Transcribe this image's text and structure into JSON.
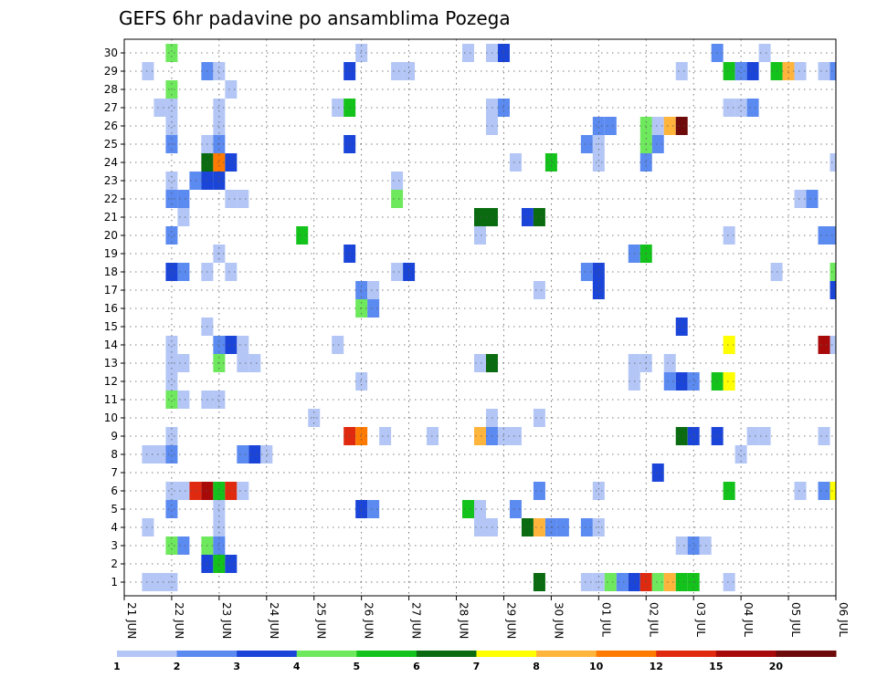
{
  "chart_data": {
    "type": "heatmap",
    "title": "GEFS 6hr padavine po ansamblima Pozega",
    "xlabel": "",
    "ylabel": "",
    "y_range": [
      1,
      30
    ],
    "x_time_range": [
      "2021-06-21 00:00",
      "2021-07-06 00:00"
    ],
    "grid": true,
    "x_tick_labels": [
      "21 JUN",
      "22 JUN",
      "23 JUN",
      "24 JUN",
      "25 JUN",
      "26 JUN",
      "27 JUN",
      "28 JUN",
      "29 JUN",
      "30 JUN",
      "01 JUL",
      "02 JUL",
      "03 JUL",
      "04 JUL",
      "05 JUL",
      "06 JUL"
    ],
    "y_tick_labels": [
      "1",
      "2",
      "3",
      "4",
      "5",
      "6",
      "7",
      "8",
      "9",
      "10",
      "11",
      "12",
      "13",
      "14",
      "15",
      "16",
      "17",
      "18",
      "19",
      "20",
      "21",
      "22",
      "23",
      "24",
      "25",
      "26",
      "27",
      "28",
      "29",
      "30"
    ],
    "colorbar": {
      "placement": "bottom",
      "levels": [
        "1",
        "2",
        "3",
        "4",
        "5",
        "6",
        "7",
        "8",
        "10",
        "12",
        "15",
        "20"
      ],
      "colors": [
        "#b3c6f5",
        "#5b8af0",
        "#1a45d8",
        "#6ee85c",
        "#14c21c",
        "#0a6b10",
        "#ffff00",
        "#ffb43c",
        "#ff7a00",
        "#e02a10",
        "#a80a0a",
        "#6e0a0a"
      ]
    },
    "cells": [
      [
        30,
        "2021-06-22 00:00",
        4.5
      ],
      [
        30,
        "2021-06-26 00:00",
        1.5
      ],
      [
        30,
        "2021-06-28 06:00",
        1.5
      ],
      [
        30,
        "2021-06-28 18:00",
        1.5
      ],
      [
        30,
        "2021-06-29 00:00",
        3.5
      ],
      [
        30,
        "2021-07-03 12:00",
        2.5
      ],
      [
        30,
        "2021-07-04 12:00",
        1.5
      ],
      [
        29,
        "2021-06-21 12:00",
        1.5
      ],
      [
        29,
        "2021-06-22 18:00",
        2.5
      ],
      [
        29,
        "2021-06-23 00:00",
        1.5
      ],
      [
        29,
        "2021-06-25 18:00",
        3.5
      ],
      [
        29,
        "2021-06-26 18:00",
        1.5
      ],
      [
        29,
        "2021-06-27 00:00",
        1.5
      ],
      [
        29,
        "2021-07-02 18:00",
        1.5
      ],
      [
        29,
        "2021-07-03 18:00",
        5.5
      ],
      [
        29,
        "2021-07-04 00:00",
        2.5
      ],
      [
        29,
        "2021-07-04 06:00",
        3.5
      ],
      [
        29,
        "2021-07-04 18:00",
        5.5
      ],
      [
        29,
        "2021-07-05 00:00",
        9
      ],
      [
        29,
        "2021-07-05 06:00",
        1.5
      ],
      [
        29,
        "2021-07-05 18:00",
        1.5
      ],
      [
        29,
        "2021-07-06 00:00",
        2.5
      ],
      [
        28,
        "2021-06-22 00:00",
        4.5
      ],
      [
        28,
        "2021-06-23 06:00",
        1.5
      ],
      [
        27,
        "2021-06-21 18:00",
        1.5
      ],
      [
        27,
        "2021-06-22 00:00",
        1.5
      ],
      [
        27,
        "2021-06-23 00:00",
        1.5
      ],
      [
        27,
        "2021-06-25 12:00",
        1.5
      ],
      [
        27,
        "2021-06-25 18:00",
        5.5
      ],
      [
        27,
        "2021-06-28 18:00",
        1.5
      ],
      [
        27,
        "2021-06-29 00:00",
        2.5
      ],
      [
        27,
        "2021-07-03 18:00",
        1.5
      ],
      [
        27,
        "2021-07-04 00:00",
        1.5
      ],
      [
        27,
        "2021-07-04 06:00",
        2.5
      ],
      [
        26,
        "2021-06-22 00:00",
        1.5
      ],
      [
        26,
        "2021-06-23 00:00",
        1.5
      ],
      [
        26,
        "2021-06-28 18:00",
        1.5
      ],
      [
        26,
        "2021-07-01 00:00",
        2.5
      ],
      [
        26,
        "2021-07-01 06:00",
        2.5
      ],
      [
        26,
        "2021-07-02 00:00",
        4.5
      ],
      [
        26,
        "2021-07-02 06:00",
        1.5
      ],
      [
        26,
        "2021-07-02 12:00",
        9
      ],
      [
        26,
        "2021-07-02 18:00",
        20
      ],
      [
        25,
        "2021-06-22 00:00",
        2.5
      ],
      [
        25,
        "2021-06-22 18:00",
        1.5
      ],
      [
        25,
        "2021-06-23 00:00",
        2.5
      ],
      [
        25,
        "2021-06-25 18:00",
        3.5
      ],
      [
        25,
        "2021-06-30 18:00",
        2.5
      ],
      [
        25,
        "2021-07-01 00:00",
        1.5
      ],
      [
        25,
        "2021-07-02 00:00",
        4.5
      ],
      [
        25,
        "2021-07-02 06:00",
        2.5
      ],
      [
        24,
        "2021-06-22 18:00",
        6.5
      ],
      [
        24,
        "2021-06-23 00:00",
        11
      ],
      [
        24,
        "2021-06-23 06:00",
        3.5
      ],
      [
        24,
        "2021-06-29 06:00",
        1.5
      ],
      [
        24,
        "2021-06-30 00:00",
        5.5
      ],
      [
        24,
        "2021-07-01 00:00",
        1.5
      ],
      [
        24,
        "2021-07-02 00:00",
        2.5
      ],
      [
        24,
        "2021-07-06 00:00",
        1.5
      ],
      [
        23,
        "2021-06-22 00:00",
        1.5
      ],
      [
        23,
        "2021-06-22 12:00",
        2.5
      ],
      [
        23,
        "2021-06-22 18:00",
        3.5
      ],
      [
        23,
        "2021-06-23 00:00",
        3.5
      ],
      [
        23,
        "2021-06-26 18:00",
        1.5
      ],
      [
        22,
        "2021-06-22 00:00",
        2.5
      ],
      [
        22,
        "2021-06-22 06:00",
        2.5
      ],
      [
        22,
        "2021-06-23 06:00",
        1.5
      ],
      [
        22,
        "2021-06-23 12:00",
        1.5
      ],
      [
        22,
        "2021-06-26 18:00",
        4.5
      ],
      [
        22,
        "2021-07-05 06:00",
        1.5
      ],
      [
        22,
        "2021-07-05 12:00",
        2.5
      ],
      [
        21,
        "2021-06-22 06:00",
        1.5
      ],
      [
        21,
        "2021-06-28 12:00",
        6.5
      ],
      [
        21,
        "2021-06-28 18:00",
        6.5
      ],
      [
        21,
        "2021-06-29 12:00",
        3.5
      ],
      [
        21,
        "2021-06-29 18:00",
        6.5
      ],
      [
        20,
        "2021-06-22 00:00",
        2.5
      ],
      [
        20,
        "2021-06-24 18:00",
        5.5
      ],
      [
        20,
        "2021-06-28 12:00",
        1.5
      ],
      [
        20,
        "2021-07-03 18:00",
        1.5
      ],
      [
        20,
        "2021-07-05 18:00",
        2.5
      ],
      [
        20,
        "2021-07-06 00:00",
        2.5
      ],
      [
        19,
        "2021-06-23 00:00",
        1.5
      ],
      [
        19,
        "2021-06-25 18:00",
        3.5
      ],
      [
        19,
        "2021-07-01 18:00",
        2.5
      ],
      [
        19,
        "2021-07-02 00:00",
        5.5
      ],
      [
        18,
        "2021-06-22 00:00",
        3.5
      ],
      [
        18,
        "2021-06-22 06:00",
        2.5
      ],
      [
        18,
        "2021-06-22 18:00",
        1.5
      ],
      [
        18,
        "2021-06-23 06:00",
        1.5
      ],
      [
        18,
        "2021-06-26 18:00",
        1.5
      ],
      [
        18,
        "2021-06-27 00:00",
        3.5
      ],
      [
        18,
        "2021-06-30 18:00",
        2.5
      ],
      [
        18,
        "2021-07-01 00:00",
        3.5
      ],
      [
        18,
        "2021-07-04 18:00",
        1.5
      ],
      [
        18,
        "2021-07-06 00:00",
        4.5
      ],
      [
        17,
        "2021-06-26 00:00",
        2.5
      ],
      [
        17,
        "2021-06-26 06:00",
        1.5
      ],
      [
        17,
        "2021-06-29 18:00",
        1.5
      ],
      [
        17,
        "2021-07-01 00:00",
        3.5
      ],
      [
        17,
        "2021-07-06 00:00",
        3.5
      ],
      [
        16,
        "2021-06-26 00:00",
        4.5
      ],
      [
        16,
        "2021-06-26 06:00",
        2.5
      ],
      [
        15,
        "2021-06-22 18:00",
        1.5
      ],
      [
        15,
        "2021-07-02 18:00",
        3.5
      ],
      [
        14,
        "2021-06-22 00:00",
        1.5
      ],
      [
        14,
        "2021-06-23 00:00",
        2.5
      ],
      [
        14,
        "2021-06-23 06:00",
        3.5
      ],
      [
        14,
        "2021-06-23 12:00",
        1.5
      ],
      [
        14,
        "2021-06-25 12:00",
        1.5
      ],
      [
        14,
        "2021-07-03 18:00",
        7.5
      ],
      [
        14,
        "2021-07-05 18:00",
        17
      ],
      [
        14,
        "2021-07-06 00:00",
        1.5
      ],
      [
        13,
        "2021-06-22 00:00",
        1.5
      ],
      [
        13,
        "2021-06-22 06:00",
        1.5
      ],
      [
        13,
        "2021-06-23 00:00",
        4.5
      ],
      [
        13,
        "2021-06-23 12:00",
        1.5
      ],
      [
        13,
        "2021-06-23 18:00",
        1.5
      ],
      [
        13,
        "2021-06-28 12:00",
        1.5
      ],
      [
        13,
        "2021-06-28 18:00",
        6.5
      ],
      [
        13,
        "2021-07-01 18:00",
        1.5
      ],
      [
        13,
        "2021-07-02 00:00",
        1.5
      ],
      [
        13,
        "2021-07-02 12:00",
        1.5
      ],
      [
        12,
        "2021-06-22 00:00",
        1.5
      ],
      [
        12,
        "2021-06-26 00:00",
        1.5
      ],
      [
        12,
        "2021-07-01 18:00",
        1.5
      ],
      [
        12,
        "2021-07-02 12:00",
        2.5
      ],
      [
        12,
        "2021-07-02 18:00",
        3.5
      ],
      [
        12,
        "2021-07-03 00:00",
        2.5
      ],
      [
        12,
        "2021-07-03 12:00",
        5.5
      ],
      [
        12,
        "2021-07-03 18:00",
        7.5
      ],
      [
        11,
        "2021-06-22 00:00",
        4.5
      ],
      [
        11,
        "2021-06-22 06:00",
        1.5
      ],
      [
        11,
        "2021-06-22 18:00",
        1.5
      ],
      [
        11,
        "2021-06-23 00:00",
        1.5
      ],
      [
        10,
        "2021-06-25 00:00",
        1.5
      ],
      [
        10,
        "2021-06-28 18:00",
        1.5
      ],
      [
        10,
        "2021-06-29 18:00",
        1.5
      ],
      [
        9,
        "2021-06-22 00:00",
        1.5
      ],
      [
        9,
        "2021-06-25 18:00",
        13
      ],
      [
        9,
        "2021-06-26 00:00",
        11
      ],
      [
        9,
        "2021-06-26 12:00",
        1.5
      ],
      [
        9,
        "2021-06-27 12:00",
        1.5
      ],
      [
        9,
        "2021-06-28 12:00",
        9
      ],
      [
        9,
        "2021-06-28 18:00",
        2.5
      ],
      [
        9,
        "2021-06-29 00:00",
        1.5
      ],
      [
        9,
        "2021-06-29 06:00",
        1.5
      ],
      [
        9,
        "2021-07-02 18:00",
        6.5
      ],
      [
        9,
        "2021-07-03 00:00",
        3.5
      ],
      [
        9,
        "2021-07-03 12:00",
        3.5
      ],
      [
        9,
        "2021-07-04 06:00",
        1.5
      ],
      [
        9,
        "2021-07-04 12:00",
        1.5
      ],
      [
        9,
        "2021-07-05 18:00",
        1.5
      ],
      [
        8,
        "2021-06-21 12:00",
        1.5
      ],
      [
        8,
        "2021-06-21 18:00",
        1.5
      ],
      [
        8,
        "2021-06-22 00:00",
        2.5
      ],
      [
        8,
        "2021-06-23 12:00",
        2.5
      ],
      [
        8,
        "2021-06-23 18:00",
        3.5
      ],
      [
        8,
        "2021-06-24 00:00",
        1.5
      ],
      [
        8,
        "2021-07-04 00:00",
        1.5
      ],
      [
        7,
        "2021-07-02 06:00",
        3.5
      ],
      [
        6,
        "2021-06-22 00:00",
        1.5
      ],
      [
        6,
        "2021-06-22 06:00",
        1.5
      ],
      [
        6,
        "2021-06-22 12:00",
        13
      ],
      [
        6,
        "2021-06-22 18:00",
        17
      ],
      [
        6,
        "2021-06-23 00:00",
        5.5
      ],
      [
        6,
        "2021-06-23 06:00",
        13
      ],
      [
        6,
        "2021-06-23 12:00",
        1.5
      ],
      [
        6,
        "2021-06-29 18:00",
        2.5
      ],
      [
        6,
        "2021-07-01 00:00",
        1.5
      ],
      [
        6,
        "2021-07-03 18:00",
        5.5
      ],
      [
        6,
        "2021-07-05 06:00",
        1.5
      ],
      [
        6,
        "2021-07-05 18:00",
        2.5
      ],
      [
        6,
        "2021-07-06 00:00",
        7.5
      ],
      [
        5,
        "2021-06-22 00:00",
        2.5
      ],
      [
        5,
        "2021-06-23 00:00",
        1.5
      ],
      [
        5,
        "2021-06-26 00:00",
        3.5
      ],
      [
        5,
        "2021-06-26 06:00",
        2.5
      ],
      [
        5,
        "2021-06-28 06:00",
        5.5
      ],
      [
        5,
        "2021-06-28 12:00",
        1.5
      ],
      [
        5,
        "2021-06-29 06:00",
        2.5
      ],
      [
        4,
        "2021-06-21 12:00",
        1.5
      ],
      [
        4,
        "2021-06-23 00:00",
        1.5
      ],
      [
        4,
        "2021-06-28 12:00",
        1.5
      ],
      [
        4,
        "2021-06-28 18:00",
        1.5
      ],
      [
        4,
        "2021-06-29 12:00",
        6.5
      ],
      [
        4,
        "2021-06-29 18:00",
        9
      ],
      [
        4,
        "2021-06-30 00:00",
        2.5
      ],
      [
        4,
        "2021-06-30 06:00",
        2.5
      ],
      [
        4,
        "2021-06-30 18:00",
        2.5
      ],
      [
        4,
        "2021-07-01 00:00",
        1.5
      ],
      [
        3,
        "2021-06-22 00:00",
        4.5
      ],
      [
        3,
        "2021-06-22 06:00",
        2.5
      ],
      [
        3,
        "2021-06-22 18:00",
        4.5
      ],
      [
        3,
        "2021-06-23 00:00",
        2.5
      ],
      [
        3,
        "2021-07-02 18:00",
        1.5
      ],
      [
        3,
        "2021-07-03 00:00",
        2.5
      ],
      [
        3,
        "2021-07-03 06:00",
        1.5
      ],
      [
        2,
        "2021-06-22 18:00",
        3.5
      ],
      [
        2,
        "2021-06-23 00:00",
        5.5
      ],
      [
        2,
        "2021-06-23 06:00",
        3.5
      ],
      [
        1,
        "2021-06-21 12:00",
        1.5
      ],
      [
        1,
        "2021-06-21 18:00",
        1.5
      ],
      [
        1,
        "2021-06-22 00:00",
        1.5
      ],
      [
        1,
        "2021-06-29 18:00",
        6.5
      ],
      [
        1,
        "2021-06-30 18:00",
        1.5
      ],
      [
        1,
        "2021-07-01 00:00",
        1.5
      ],
      [
        1,
        "2021-07-01 06:00",
        4.5
      ],
      [
        1,
        "2021-07-01 12:00",
        2.5
      ],
      [
        1,
        "2021-07-01 18:00",
        3.5
      ],
      [
        1,
        "2021-07-02 00:00",
        13
      ],
      [
        1,
        "2021-07-02 06:00",
        4.5
      ],
      [
        1,
        "2021-07-02 12:00",
        9
      ],
      [
        1,
        "2021-07-02 18:00",
        5.5
      ],
      [
        1,
        "2021-07-03 00:00",
        5.5
      ],
      [
        1,
        "2021-07-03 18:00",
        1.5
      ]
    ]
  }
}
